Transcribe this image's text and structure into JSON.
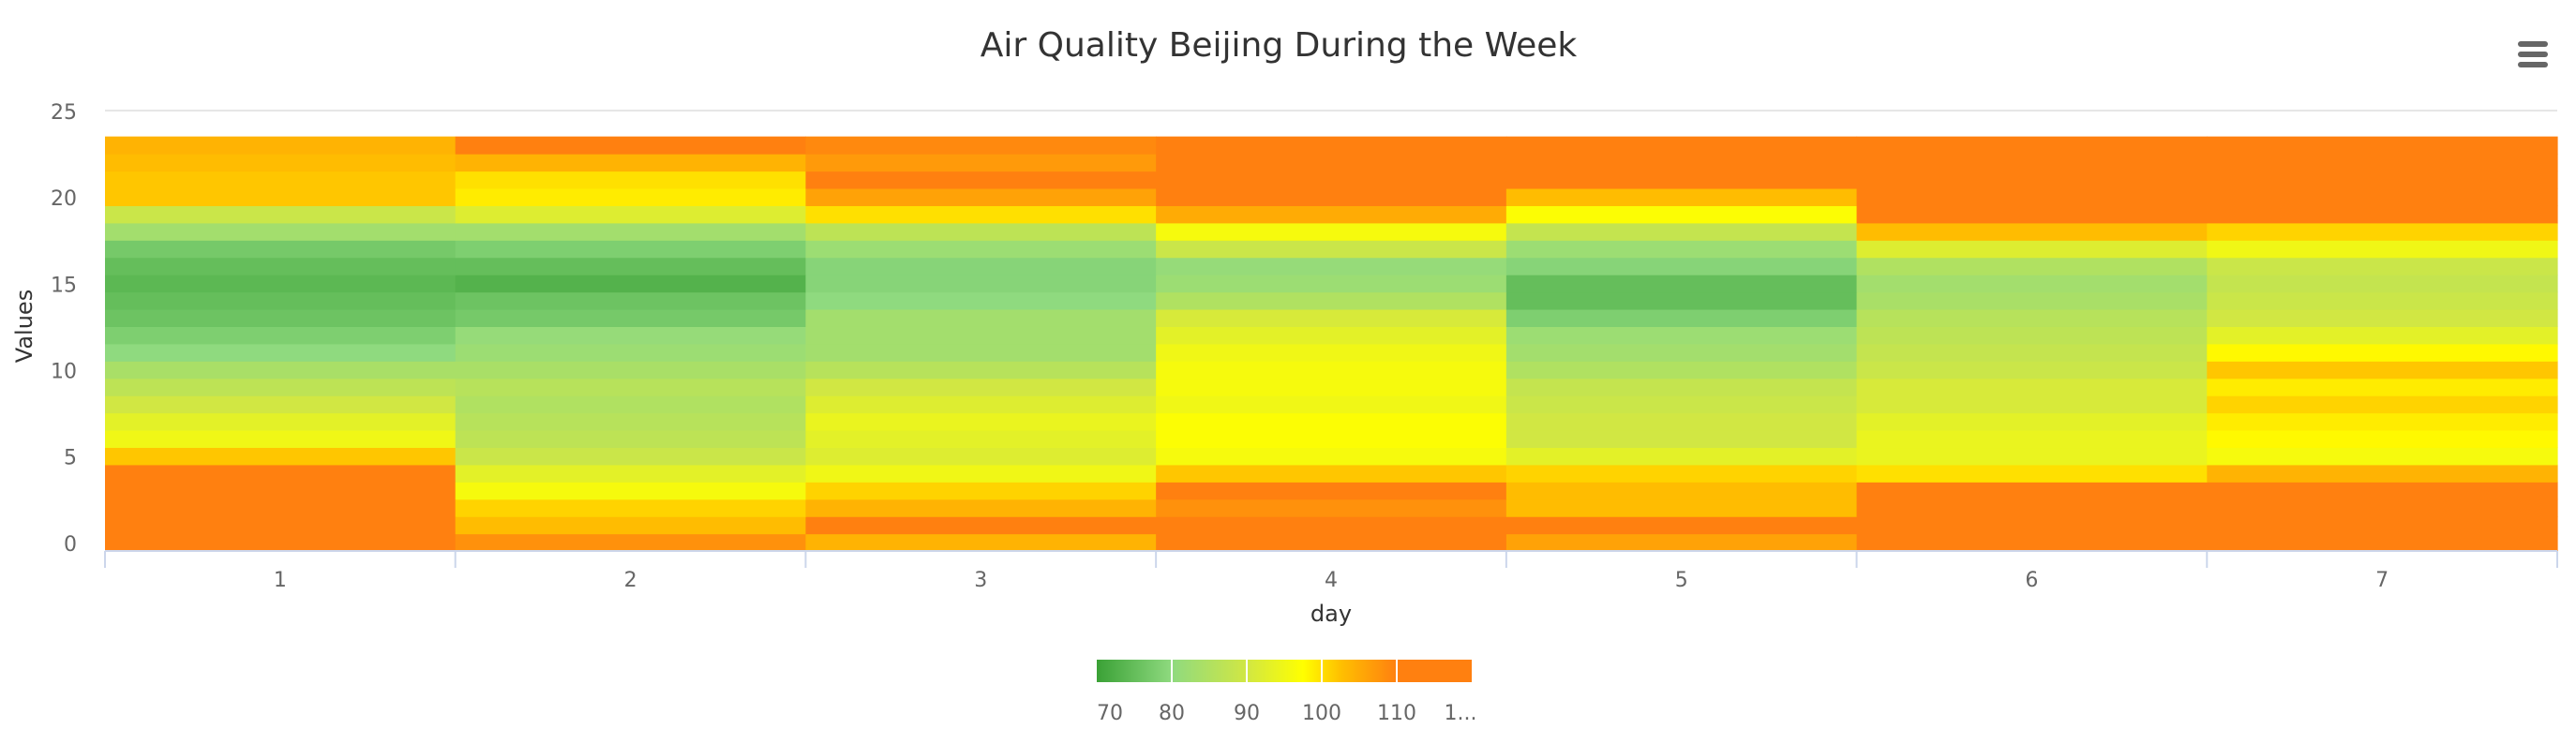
{
  "chart_data": {
    "type": "heatmap",
    "title": "Air Quality Beijing During the Week",
    "xlabel": "day",
    "ylabel": "Values",
    "x": [
      1,
      2,
      3,
      4,
      5,
      6,
      7
    ],
    "y": [
      0,
      1,
      2,
      3,
      4,
      5,
      6,
      7,
      8,
      9,
      10,
      11,
      12,
      13,
      14,
      15,
      16,
      17,
      18,
      19,
      20,
      21,
      22,
      23
    ],
    "y_ticks": [
      0,
      5,
      10,
      15,
      20,
      25
    ],
    "ylim": [
      -0.5,
      25
    ],
    "grid": true,
    "legend_position": "bottom",
    "colorbar": {
      "ticks": [
        "70",
        "80",
        "90",
        "100",
        "110",
        "1..."
      ],
      "range": [
        70,
        120
      ],
      "stops": [
        {
          "offset": 0.0,
          "color": "#3aa136"
        },
        {
          "offset": 0.2,
          "color": "#8fda7f"
        },
        {
          "offset": 0.4,
          "color": "#d1e743"
        },
        {
          "offset": 0.55,
          "color": "#ffff00"
        },
        {
          "offset": 0.65,
          "color": "#ffc000"
        },
        {
          "offset": 0.8,
          "color": "#ff8010"
        },
        {
          "offset": 1.0,
          "color": "#ff8010"
        }
      ]
    },
    "values": [
      [
        120,
        108,
        104,
        112,
        106,
        120,
        113
      ],
      [
        120,
        103,
        113,
        110,
        110,
        120,
        118
      ],
      [
        120,
        101,
        104,
        108,
        103,
        120,
        113
      ],
      [
        112,
        96,
        101,
        113,
        103,
        110,
        110
      ],
      [
        110,
        93,
        95,
        102,
        101,
        100,
        104
      ],
      [
        102,
        89,
        92,
        96,
        93,
        94,
        96
      ],
      [
        95,
        87,
        93,
        97,
        90,
        94,
        98
      ],
      [
        93,
        86,
        94,
        97,
        90,
        93,
        99
      ],
      [
        90,
        85,
        92,
        95,
        89,
        91,
        101
      ],
      [
        87,
        86,
        90,
        96,
        88,
        91,
        99
      ],
      [
        84,
        84,
        86,
        96,
        85,
        89,
        102
      ],
      [
        80,
        82,
        83,
        95,
        83,
        88,
        98
      ],
      [
        78,
        81,
        83,
        93,
        82,
        87,
        93
      ],
      [
        76,
        77,
        83,
        91,
        78,
        86,
        90
      ],
      [
        75,
        76,
        80,
        85,
        75,
        84,
        89
      ],
      [
        74,
        73,
        79,
        82,
        75,
        83,
        88
      ],
      [
        75,
        75,
        79,
        81,
        79,
        85,
        89
      ],
      [
        77,
        78,
        82,
        89,
        82,
        92,
        95
      ],
      [
        83,
        83,
        87,
        96,
        88,
        103,
        101
      ],
      [
        89,
        92,
        100,
        105,
        97,
        114,
        112
      ],
      [
        102,
        99,
        106,
        111,
        103,
        120,
        120
      ],
      [
        102,
        100,
        110,
        110,
        120,
        120,
        120
      ],
      [
        103,
        104,
        107,
        110,
        120,
        120,
        120
      ],
      [
        104,
        113,
        109,
        114,
        120,
        120,
        120
      ]
    ]
  }
}
